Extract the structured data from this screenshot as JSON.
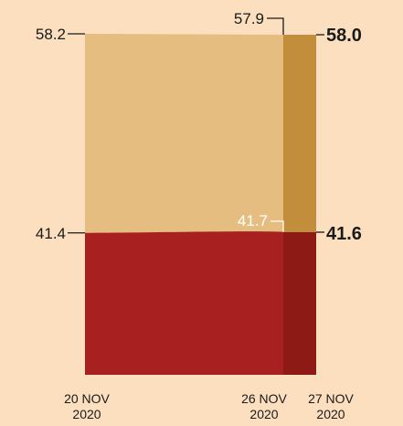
{
  "chart_data": {
    "type": "bar",
    "stacked": true,
    "categories": [
      "20 NOV 2020",
      "26 NOV 2020",
      "27 NOV 2020"
    ],
    "category_lines": [
      [
        "20 NOV",
        "2020"
      ],
      [
        "26 NOV",
        "2020"
      ],
      [
        "27 NOV",
        "2020"
      ]
    ],
    "series": [
      {
        "values": [
          41.4,
          41.7,
          41.6
        ],
        "color": "#a8201f",
        "labels": [
          "41.4",
          "41.7",
          "41.6"
        ]
      },
      {
        "values": [
          58.2,
          57.9,
          58.0
        ],
        "color": "#e6bd80",
        "labels": [
          "58.2",
          "57.9",
          "58.0"
        ]
      }
    ],
    "latest_colors": [
      "#8e1a15",
      "#c38e3c"
    ],
    "ylim": [
      0,
      100
    ],
    "grid": false,
    "legend": false,
    "background": "#fbdfbf",
    "text_color": "#1a1a1a"
  }
}
